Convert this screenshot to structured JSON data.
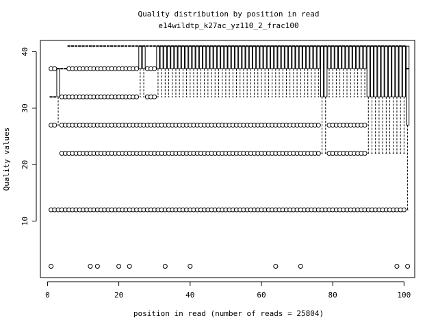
{
  "chart_data": {
    "type": "boxplot",
    "title": "Quality distribution by position in read",
    "subtitle": "e14wildtp_k27ac_yz110_2_frac100",
    "xlabel": "position in read (number of reads = 25804)",
    "ylabel": "Quality values",
    "xlim": [
      -2,
      103
    ],
    "ylim": [
      0,
      42
    ],
    "x_ticks": [
      0,
      20,
      40,
      60,
      80,
      100
    ],
    "y_ticks": [
      10,
      20,
      30,
      40
    ],
    "segments": [
      {
        "from": 1,
        "to": 1,
        "median": 32,
        "q1": 32,
        "q3": 32,
        "wlo": 32,
        "whi": 32,
        "outliers": [
          37,
          27,
          12,
          2
        ]
      },
      {
        "from": 2,
        "to": 2,
        "median": 32,
        "q1": 32,
        "q3": 32,
        "wlo": 32,
        "whi": 32,
        "outliers": [
          37,
          27,
          12
        ]
      },
      {
        "from": 3,
        "to": 3,
        "median": 37,
        "q1": 32,
        "q3": 37,
        "wlo": 27,
        "whi": 37,
        "outliers": [
          12
        ]
      },
      {
        "from": 4,
        "to": 5,
        "median": 37,
        "q1": 37,
        "q3": 37,
        "wlo": 37,
        "whi": 37,
        "outliers": [
          32,
          27,
          22,
          12
        ]
      },
      {
        "from": 6,
        "to": 25,
        "median": 41,
        "q1": 41,
        "q3": 41,
        "wlo": 41,
        "whi": 41,
        "outliers": [
          37,
          32,
          27,
          22,
          12
        ]
      },
      {
        "from": 26,
        "to": 27,
        "median": 41,
        "q1": 37,
        "q3": 41,
        "wlo": 32,
        "whi": 41,
        "outliers": [
          27,
          22,
          12
        ]
      },
      {
        "from": 28,
        "to": 30,
        "median": 41,
        "q1": 41,
        "q3": 41,
        "wlo": 41,
        "whi": 41,
        "outliers": [
          37,
          32,
          27,
          22,
          12
        ]
      },
      {
        "from": 31,
        "to": 76,
        "median": 41,
        "q1": 37,
        "q3": 41,
        "wlo": 32,
        "whi": 41,
        "outliers": [
          27,
          22,
          12
        ]
      },
      {
        "from": 77,
        "to": 78,
        "median": 41,
        "q1": 32,
        "q3": 41,
        "wlo": 22,
        "whi": 41,
        "outliers": [
          12
        ]
      },
      {
        "from": 79,
        "to": 89,
        "median": 41,
        "q1": 37,
        "q3": 41,
        "wlo": 32,
        "whi": 41,
        "outliers": [
          27,
          22,
          12
        ]
      },
      {
        "from": 90,
        "to": 100,
        "median": 41,
        "q1": 32,
        "q3": 41,
        "wlo": 22,
        "whi": 41,
        "outliers": [
          12
        ]
      },
      {
        "from": 101,
        "to": 101,
        "median": 37,
        "q1": 27,
        "q3": 41,
        "wlo": 12,
        "whi": 41,
        "outliers": [
          2
        ]
      }
    ],
    "extra_outliers": [
      {
        "x": 12,
        "y": 2
      },
      {
        "x": 14,
        "y": 2
      },
      {
        "x": 20,
        "y": 2
      },
      {
        "x": 23,
        "y": 2
      },
      {
        "x": 33,
        "y": 2
      },
      {
        "x": 40,
        "y": 2
      },
      {
        "x": 64,
        "y": 2
      },
      {
        "x": 71,
        "y": 2
      },
      {
        "x": 98,
        "y": 2
      }
    ]
  }
}
